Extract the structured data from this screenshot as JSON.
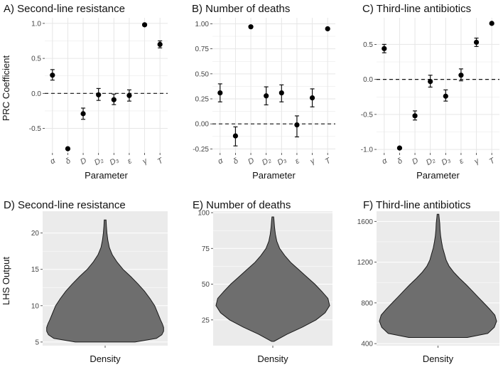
{
  "figure": {
    "ylabel_top": "PRC Coefficient",
    "ylabel_bottom": "LHS Output",
    "colors": {
      "panel_bg": "#ebebeb",
      "grid": "#ffffff",
      "point": "#000000",
      "violin_fill": "#6e6e6e",
      "violin_stroke": "#1a1a1a",
      "top_bg": "#ffffff",
      "top_grid": "#e6e6e6"
    }
  },
  "chart_data": [
    {
      "id": "A",
      "type": "scatter",
      "title": "A) Second-line resistance",
      "xlabel": "Parameter",
      "ylabel": "PRC Coefficient",
      "categories": [
        "α",
        "δ",
        "D",
        "D₂",
        "D₃",
        "ε",
        "γ",
        "T"
      ],
      "values": [
        0.26,
        -0.79,
        -0.29,
        -0.02,
        -0.09,
        -0.03,
        0.98,
        0.7
      ],
      "error_low": [
        0.19,
        null,
        -0.37,
        -0.1,
        -0.16,
        -0.11,
        null,
        0.65
      ],
      "error_high": [
        0.34,
        null,
        -0.21,
        0.07,
        -0.01,
        0.05,
        null,
        0.75
      ],
      "ylim": [
        -0.85,
        1.08
      ],
      "yticks": [
        -0.5,
        0.0,
        0.5,
        1.0
      ],
      "ytick_labels": [
        "-0.5",
        "0.0",
        "0.5",
        "1.0"
      ],
      "reference_line": 0
    },
    {
      "id": "B",
      "type": "scatter",
      "title": "B) Number of deaths",
      "xlabel": "Parameter",
      "ylabel": "",
      "categories": [
        "α",
        "δ",
        "D",
        "D₂",
        "D₃",
        "ε",
        "γ",
        "T"
      ],
      "values": [
        0.31,
        -0.12,
        0.97,
        0.28,
        0.31,
        -0.01,
        0.26,
        0.95
      ],
      "error_low": [
        0.22,
        -0.22,
        null,
        0.19,
        0.22,
        -0.13,
        0.17,
        null
      ],
      "error_high": [
        0.4,
        -0.03,
        null,
        0.37,
        0.39,
        0.08,
        0.35,
        null
      ],
      "ylim": [
        -0.29,
        1.06
      ],
      "yticks": [
        -0.25,
        0.0,
        0.25,
        0.5,
        0.75,
        1.0
      ],
      "ytick_labels": [
        "-0.25",
        "0.00",
        "0.25",
        "0.50",
        "0.75",
        "1.00"
      ],
      "reference_line": 0
    },
    {
      "id": "C",
      "type": "scatter",
      "title": "C) Third-line antibiotics",
      "xlabel": "Parameter",
      "ylabel": "",
      "categories": [
        "α",
        "δ",
        "D",
        "D₂",
        "D₃",
        "ε",
        "γ",
        "T"
      ],
      "values": [
        0.44,
        -0.98,
        -0.52,
        -0.03,
        -0.24,
        0.06,
        0.53,
        0.8
      ],
      "error_low": [
        0.38,
        null,
        -0.58,
        -0.11,
        -0.31,
        -0.02,
        0.47,
        null
      ],
      "error_high": [
        0.5,
        null,
        -0.45,
        0.06,
        -0.15,
        0.15,
        0.59,
        null
      ],
      "ylim": [
        -1.05,
        0.88
      ],
      "yticks": [
        -1.0,
        -0.5,
        0.0,
        0.5
      ],
      "ytick_labels": [
        "-1.0",
        "-0.5",
        "0.0",
        "0.5"
      ],
      "reference_line": 0
    },
    {
      "id": "D",
      "type": "violin",
      "title": "D) Second-line resistance",
      "xlabel": "Density",
      "ylabel": "LHS Output",
      "ylim": [
        4.5,
        23
      ],
      "yticks": [
        5,
        10,
        15,
        20
      ],
      "ytick_labels": [
        "5",
        "10",
        "15",
        "20"
      ],
      "profile": [
        [
          5.0,
          0.5
        ],
        [
          5.5,
          0.86
        ],
        [
          6.0,
          0.95
        ],
        [
          6.5,
          0.98
        ],
        [
          7,
          0.98
        ],
        [
          7.5,
          0.96
        ],
        [
          8,
          0.93
        ],
        [
          9,
          0.88
        ],
        [
          10,
          0.83
        ],
        [
          11,
          0.75
        ],
        [
          12,
          0.66
        ],
        [
          13,
          0.55
        ],
        [
          14,
          0.43
        ],
        [
          15,
          0.3
        ],
        [
          16,
          0.2
        ],
        [
          17,
          0.12
        ],
        [
          18,
          0.07
        ],
        [
          19,
          0.045
        ],
        [
          20,
          0.03
        ],
        [
          21,
          0.02
        ],
        [
          21.8,
          0.015
        ]
      ]
    },
    {
      "id": "E",
      "type": "violin",
      "title": "E) Number of deaths",
      "xlabel": "Density",
      "ylabel": "",
      "ylim": [
        7,
        101
      ],
      "yticks": [
        25,
        50,
        75,
        100
      ],
      "ytick_labels": [
        "25",
        "50",
        "75",
        "100"
      ],
      "profile": [
        [
          10,
          0.02
        ],
        [
          15,
          0.25
        ],
        [
          20,
          0.52
        ],
        [
          25,
          0.76
        ],
        [
          30,
          0.92
        ],
        [
          35,
          1.0
        ],
        [
          40,
          0.97
        ],
        [
          45,
          0.86
        ],
        [
          50,
          0.74
        ],
        [
          55,
          0.6
        ],
        [
          60,
          0.46
        ],
        [
          65,
          0.32
        ],
        [
          70,
          0.21
        ],
        [
          75,
          0.12
        ],
        [
          80,
          0.07
        ],
        [
          85,
          0.045
        ],
        [
          90,
          0.03
        ],
        [
          95,
          0.02
        ],
        [
          97,
          0.015
        ]
      ]
    },
    {
      "id": "F",
      "type": "violin",
      "title": "F) Third-line antibiotics",
      "xlabel": "Density",
      "ylabel": "",
      "ylim": [
        380,
        1700
      ],
      "yticks": [
        400,
        800,
        1200,
        1600
      ],
      "ytick_labels": [
        "400",
        "800",
        "1200",
        "1600"
      ],
      "profile": [
        [
          460,
          0.5
        ],
        [
          500,
          0.85
        ],
        [
          560,
          0.96
        ],
        [
          620,
          1.0
        ],
        [
          680,
          0.97
        ],
        [
          740,
          0.88
        ],
        [
          800,
          0.78
        ],
        [
          860,
          0.68
        ],
        [
          920,
          0.58
        ],
        [
          980,
          0.48
        ],
        [
          1040,
          0.37
        ],
        [
          1100,
          0.27
        ],
        [
          1160,
          0.19
        ],
        [
          1220,
          0.14
        ],
        [
          1280,
          0.11
        ],
        [
          1340,
          0.08
        ],
        [
          1400,
          0.06
        ],
        [
          1460,
          0.045
        ],
        [
          1520,
          0.035
        ],
        [
          1580,
          0.03
        ],
        [
          1640,
          0.02
        ],
        [
          1670,
          0.015
        ]
      ]
    }
  ]
}
